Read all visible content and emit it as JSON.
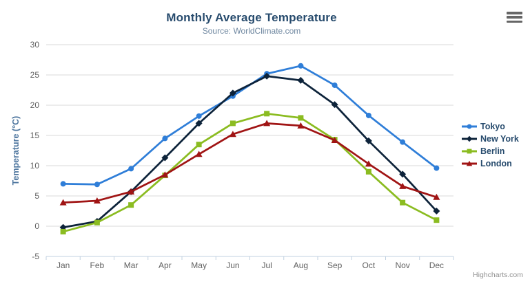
{
  "chart_data": {
    "type": "line",
    "title": "Monthly Average Temperature",
    "subtitle": "Source: WorldClimate.com",
    "xlabel": "",
    "ylabel": "Temperature (°C)",
    "ylim": [
      -5,
      30
    ],
    "ytick_step": 5,
    "grid": true,
    "legend_position": "right",
    "categories": [
      "Jan",
      "Feb",
      "Mar",
      "Apr",
      "May",
      "Jun",
      "Jul",
      "Aug",
      "Sep",
      "Oct",
      "Nov",
      "Dec"
    ],
    "series": [
      {
        "name": "Tokyo",
        "color": "#2f7ed8",
        "marker": "circle",
        "values": [
          7.0,
          6.9,
          9.5,
          14.5,
          18.2,
          21.5,
          25.2,
          26.5,
          23.3,
          18.3,
          13.9,
          9.6
        ]
      },
      {
        "name": "New York",
        "color": "#0d233a",
        "marker": "diamond",
        "values": [
          -0.2,
          0.8,
          5.7,
          11.3,
          17.0,
          22.0,
          24.8,
          24.1,
          20.1,
          14.1,
          8.6,
          2.5
        ]
      },
      {
        "name": "Berlin",
        "color": "#8bbc21",
        "marker": "square",
        "values": [
          -0.9,
          0.6,
          3.5,
          8.4,
          13.5,
          17.0,
          18.6,
          17.9,
          14.3,
          9.0,
          3.9,
          1.0
        ]
      },
      {
        "name": "London",
        "color": "#a01414",
        "marker": "triangle",
        "values": [
          3.9,
          4.2,
          5.7,
          8.5,
          11.9,
          15.2,
          17.0,
          16.6,
          14.2,
          10.3,
          6.6,
          4.8
        ]
      }
    ],
    "colors": {
      "grid_line": "#d8d8d8",
      "axis_line": "#c0d0e0",
      "axis_label": "#606060",
      "title": "#274b6d",
      "subtitle": "#6d869f",
      "y_title": "#4d759e",
      "legend_text": "#274b6d",
      "credits": "#909090"
    }
  },
  "credits": {
    "text": "Highcharts.com"
  },
  "menu": {
    "icon": "hamburger-icon"
  }
}
